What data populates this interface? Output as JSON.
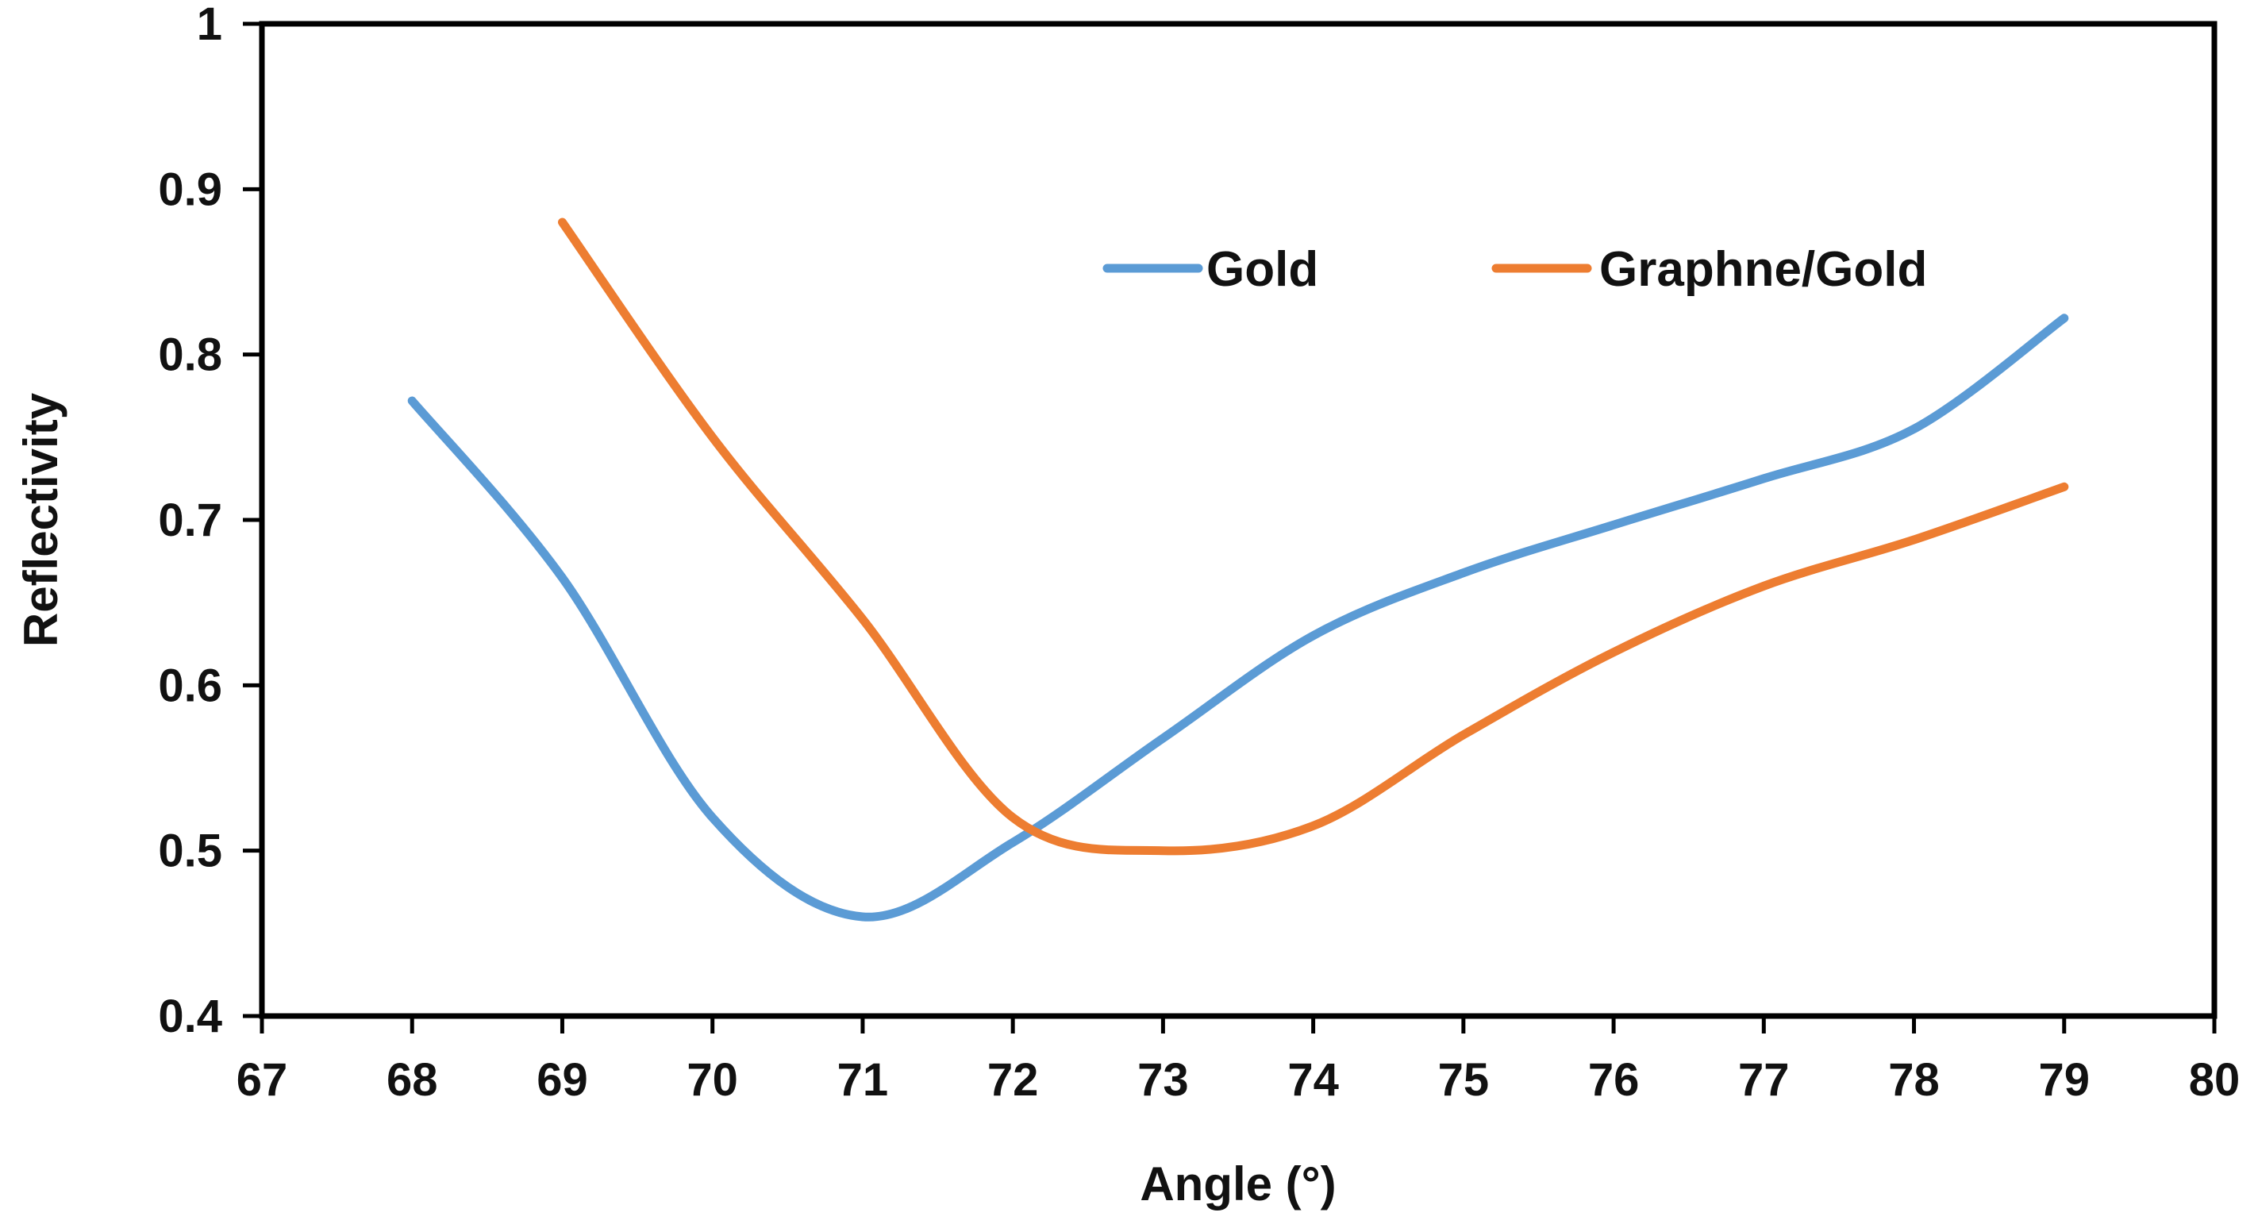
{
  "chart_data": {
    "type": "line",
    "title": "",
    "xlabel": "Angle (°)",
    "ylabel": "Reflectivity",
    "xlim": [
      67,
      80
    ],
    "ylim": [
      0.4,
      1
    ],
    "xticks": [
      "67",
      "68",
      "69",
      "70",
      "71",
      "72",
      "73",
      "74",
      "75",
      "76",
      "77",
      "78",
      "79",
      "80"
    ],
    "yticks": [
      "0.4",
      "0.5",
      "0.6",
      "0.7",
      "0.8",
      "0.9",
      "1"
    ],
    "grid": false,
    "legend_position": "top-right",
    "series": [
      {
        "name": "Gold",
        "color": "#5B9BD5",
        "x": [
          68,
          69,
          70,
          71,
          72,
          73,
          74,
          75,
          76,
          77,
          78,
          79
        ],
        "y": [
          0.772,
          0.665,
          0.52,
          0.46,
          0.505,
          0.568,
          0.63,
          0.668,
          0.697,
          0.725,
          0.755,
          0.822
        ]
      },
      {
        "name": "Graphne/Gold",
        "color": "#ED7D31",
        "x": [
          69,
          70,
          71,
          72,
          73,
          74,
          75,
          76,
          77,
          78,
          79
        ],
        "y": [
          0.88,
          0.75,
          0.64,
          0.52,
          0.5,
          0.515,
          0.57,
          0.62,
          0.66,
          0.688,
          0.72
        ]
      }
    ]
  }
}
